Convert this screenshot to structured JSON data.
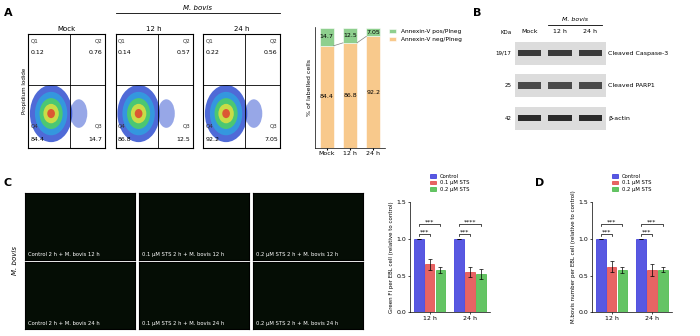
{
  "chart_data": [
    {
      "type": "flow_cytometry",
      "title": "Mock",
      "y_label": "Propidium Iodide",
      "tick_labels": false,
      "quadrants": [
        {
          "name": "Q1",
          "value": 0.12
        },
        {
          "name": "Q2",
          "value": 0.76
        },
        {
          "name": "Q3",
          "value": 14.7
        },
        {
          "name": "Q4",
          "value": 84.4
        }
      ]
    },
    {
      "type": "flow_cytometry",
      "title": "12 h",
      "group": "M. bovis",
      "tick_labels": false,
      "quadrants": [
        {
          "name": "Q1",
          "value": 0.14
        },
        {
          "name": "Q2",
          "value": 0.57
        },
        {
          "name": "Q3",
          "value": 12.5
        },
        {
          "name": "Q4",
          "value": 86.8
        }
      ]
    },
    {
      "type": "flow_cytometry",
      "title": "24 h",
      "group": "M. bovis",
      "tick_labels": false,
      "quadrants": [
        {
          "name": "Q1",
          "value": 0.22
        },
        {
          "name": "Q2",
          "value": 0.56
        },
        {
          "name": "Q3",
          "value": 7.05
        },
        {
          "name": "Q4",
          "value": 92.2
        }
      ]
    },
    {
      "type": "bar",
      "stacked": true,
      "categories": [
        "Mock",
        "12 h",
        "24 h"
      ],
      "y_label": "% of labelled cells",
      "ylim": [
        0,
        100
      ],
      "tick_labels": "x",
      "data_labels": true,
      "legend": "right",
      "series": [
        {
          "name": "Annexin-V neg/PIneg",
          "color": "#f8c98c",
          "values": [
            84.4,
            86.8,
            92.2
          ]
        },
        {
          "name": "Annexin-V pos/PIneg",
          "color": "#8ecf8e",
          "values": [
            14.7,
            12.5,
            7.05
          ]
        }
      ]
    },
    {
      "type": "bar",
      "categories": [
        "12 h",
        "24 h"
      ],
      "y_label": "Green FI per EBL cell (relative to control)",
      "ylim": [
        0,
        1.5
      ],
      "yticks": [
        {
          "value": 0,
          "label": "0.0"
        },
        {
          "value": 0.5,
          "label": "0.5"
        },
        {
          "value": 1,
          "label": "1.0"
        },
        {
          "value": 1.5,
          "label": "1.5"
        }
      ],
      "legend": "upper center",
      "series": [
        {
          "name": "Control",
          "color": "#2020d8",
          "values": [
            1.0,
            1.0
          ],
          "errors": [
            0,
            0
          ]
        },
        {
          "name": "0.1 μM STS",
          "color": "#e03030",
          "values": [
            0.65,
            0.55
          ],
          "errors": [
            0.08,
            0.07
          ]
        },
        {
          "name": "0.2 μM STS",
          "color": "#30b030",
          "values": [
            0.57,
            0.52
          ],
          "errors": [
            0.04,
            0.07
          ]
        }
      ],
      "significance": [
        {
          "category": "12 h",
          "series": "0.1 μM STS",
          "label": "***"
        },
        {
          "category": "12 h",
          "series": "0.2 μM STS",
          "label": "***"
        },
        {
          "category": "24 h",
          "series": "0.1 μM STS",
          "label": "***"
        },
        {
          "category": "24 h",
          "series": "0.2 μM STS",
          "label": "****"
        }
      ]
    },
    {
      "type": "bar",
      "categories": [
        "12 h",
        "24 h"
      ],
      "y_label": "M.bovis number per EBL cell (relative to control)",
      "ylim": [
        0,
        1.5
      ],
      "yticks": [
        {
          "value": 0,
          "label": "0.0"
        },
        {
          "value": 0.5,
          "label": "0.5"
        },
        {
          "value": 1,
          "label": "1.0"
        },
        {
          "value": 1.5,
          "label": "1.5"
        }
      ],
      "legend": "upper center",
      "series": [
        {
          "name": "Control",
          "color": "#2020d8",
          "values": [
            1.0,
            1.0
          ],
          "errors": [
            0,
            0
          ]
        },
        {
          "name": "0.1 μM STS",
          "color": "#e03030",
          "values": [
            0.62,
            0.58
          ],
          "errors": [
            0.07,
            0.08
          ]
        },
        {
          "name": "0.2 μM STS",
          "color": "#30b030",
          "values": [
            0.58,
            0.58
          ],
          "errors": [
            0.04,
            0.03
          ]
        }
      ],
      "significance": [
        {
          "category": "12 h",
          "series": "0.1 μM STS",
          "label": "***"
        },
        {
          "category": "12 h",
          "series": "0.2 μM STS",
          "label": "***"
        },
        {
          "category": "24 h",
          "series": "0.1 μM STS",
          "label": "***"
        },
        {
          "category": "24 h",
          "series": "0.2 μM STS",
          "label": "***"
        }
      ]
    }
  ],
  "figure": {
    "panel_labels": [
      "A",
      "B",
      "C",
      "D"
    ],
    "blot": {
      "group": "M. bovis",
      "lanes": [
        "Mock",
        "12 h",
        "24 h"
      ],
      "unit": "KDa",
      "rows": [
        {
          "kda": "19/17",
          "label": "Cleaved Caspase-3"
        },
        {
          "kda": "25",
          "label": "Cleaved PARP1"
        },
        {
          "kda": "42",
          "label": "β-actin"
        }
      ]
    },
    "images": {
      "row_label": "M. bovis",
      "captions": [
        [
          "Control 2 h + M. bovis 12 h",
          "0.1 μM STS 2 h + M. bovis 12 h",
          "0.2 μM STS 2 h + M. bovis 12 h"
        ],
        [
          "Control 2 h + M. bovis 24 h",
          "0.1 μM STS 2 h + M. bovis 24 h",
          "0.2 μM STS 2 h + M. bovis 24 h"
        ]
      ]
    }
  }
}
